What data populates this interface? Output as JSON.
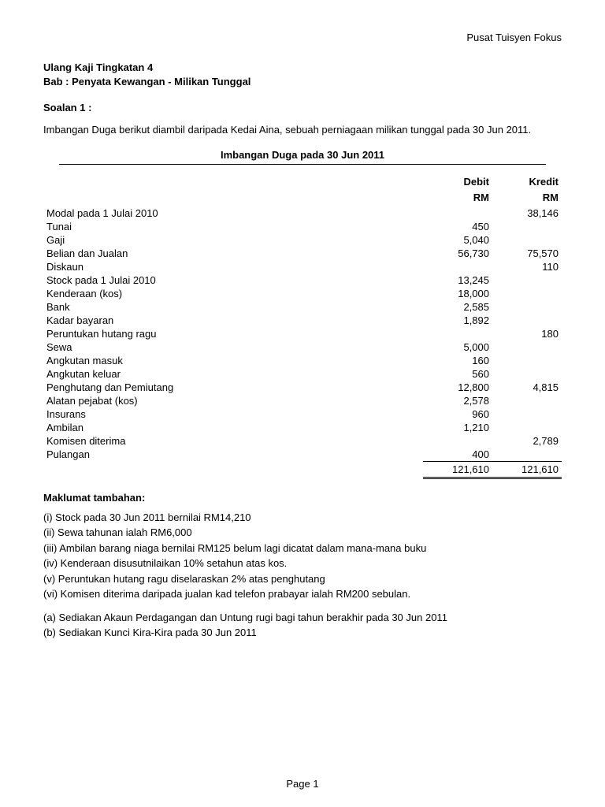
{
  "header": {
    "org": "Pusat Tuisyen Fokus",
    "title1": "Ulang Kaji Tingkatan 4",
    "title2": "Bab : Penyata Kewangan - Milikan Tunggal"
  },
  "question": {
    "label": "Soalan 1 :",
    "intro": "Imbangan Duga berikut diambil daripada Kedai Aina, sebuah perniagaan milikan tunggal pada 30 Jun 2011."
  },
  "trial_balance": {
    "title": "Imbangan Duga pada 30 Jun 2011",
    "col_debit": "Debit",
    "col_kredit": "Kredit",
    "unit": "RM",
    "rows": [
      {
        "label": "Modal pada 1 Julai 2010",
        "debit": "",
        "kredit": "38,146"
      },
      {
        "label": "Tunai",
        "debit": "450",
        "kredit": ""
      },
      {
        "label": "Gaji",
        "debit": "5,040",
        "kredit": ""
      },
      {
        "label": "Belian dan Jualan",
        "debit": "56,730",
        "kredit": "75,570"
      },
      {
        "label": "Diskaun",
        "debit": "",
        "kredit": "110"
      },
      {
        "label": "Stock pada 1 Julai 2010",
        "debit": "13,245",
        "kredit": ""
      },
      {
        "label": "Kenderaan (kos)",
        "debit": "18,000",
        "kredit": ""
      },
      {
        "label": "Bank",
        "debit": "2,585",
        "kredit": ""
      },
      {
        "label": "Kadar bayaran",
        "debit": "1,892",
        "kredit": ""
      },
      {
        "label": "Peruntukan hutang ragu",
        "debit": "",
        "kredit": "180"
      },
      {
        "label": "Sewa",
        "debit": "5,000",
        "kredit": ""
      },
      {
        "label": "Angkutan masuk",
        "debit": "160",
        "kredit": ""
      },
      {
        "label": "Angkutan keluar",
        "debit": "560",
        "kredit": ""
      },
      {
        "label": "Penghutang dan Pemiutang",
        "debit": "12,800",
        "kredit": "4,815"
      },
      {
        "label": "Alatan pejabat (kos)",
        "debit": "2,578",
        "kredit": ""
      },
      {
        "label": "Insurans",
        "debit": "960",
        "kredit": ""
      },
      {
        "label": "Ambilan",
        "debit": "1,210",
        "kredit": ""
      },
      {
        "label": "Komisen diterima",
        "debit": "",
        "kredit": "2,789"
      },
      {
        "label": "Pulangan",
        "debit": "400",
        "kredit": ""
      }
    ],
    "total_debit": "121,610",
    "total_kredit": "121,610"
  },
  "additional": {
    "label": "Maklumat tambahan:",
    "notes": [
      "(i)  Stock pada 30 Jun 2011 bernilai RM14,210",
      "(ii)  Sewa tahunan ialah RM6,000",
      "(iii) Ambilan barang niaga bernilai RM125 belum lagi dicatat dalam mana-mana buku",
      "(iv) Kenderaan disusutnilaikan 10% setahun atas kos.",
      "(v)  Peruntukan hutang ragu diselaraskan 2% atas penghutang",
      "(vi) Komisen diterima daripada jualan kad telefon prabayar ialah RM200 sebulan."
    ],
    "tasks": [
      "(a) Sediakan Akaun Perdagangan dan Untung rugi bagi tahun berakhir pada 30 Jun 2011",
      "(b) Sediakan Kunci Kira-Kira pada 30 Jun 2011"
    ]
  },
  "footer": {
    "page": "Page 1"
  }
}
